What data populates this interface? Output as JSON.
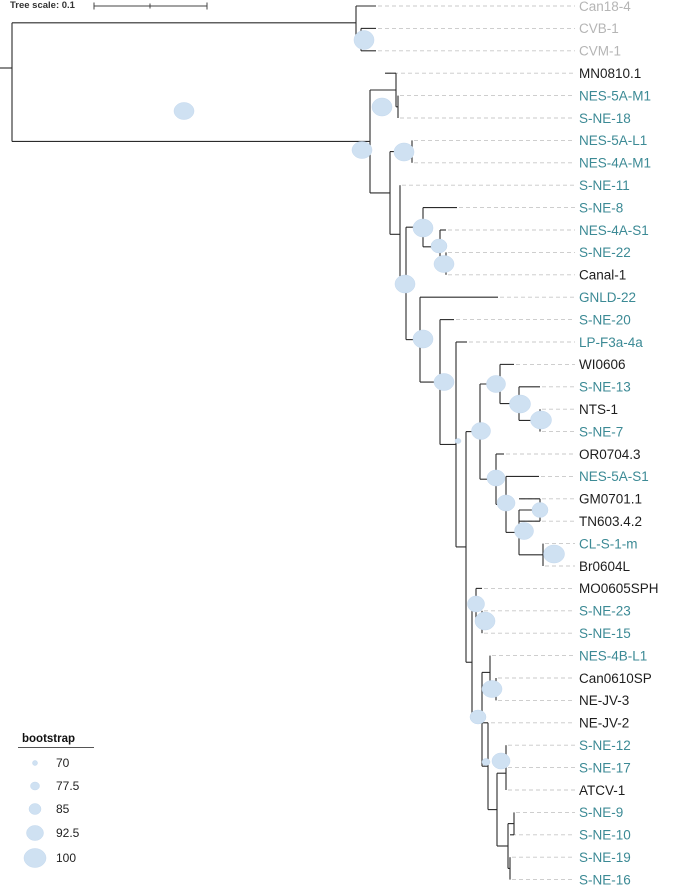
{
  "scale": {
    "label": "Tree scale: 0.1"
  },
  "legend": {
    "title": "bootstrap",
    "entries": [
      "70",
      "77.5",
      "85",
      "92.5",
      "100"
    ]
  },
  "colors": {
    "teal": "#3c8a95",
    "black": "#1e1e1e",
    "gray": "#b5b5b5",
    "bubble": "#cfe1f2",
    "branch": "#2b2b2b"
  },
  "taxa": [
    {
      "name": "Can18-4",
      "color": "gray"
    },
    {
      "name": "CVB-1",
      "color": "gray"
    },
    {
      "name": "CVM-1",
      "color": "gray"
    },
    {
      "name": "MN0810.1",
      "color": "black"
    },
    {
      "name": "NES-5A-M1",
      "color": "teal"
    },
    {
      "name": "S-NE-18",
      "color": "teal"
    },
    {
      "name": "NES-5A-L1",
      "color": "teal"
    },
    {
      "name": "NES-4A-M1",
      "color": "teal"
    },
    {
      "name": "S-NE-11",
      "color": "teal"
    },
    {
      "name": "S-NE-8",
      "color": "teal"
    },
    {
      "name": "NES-4A-S1",
      "color": "teal"
    },
    {
      "name": "S-NE-22",
      "color": "teal"
    },
    {
      "name": "Canal-1",
      "color": "black"
    },
    {
      "name": "GNLD-22",
      "color": "teal"
    },
    {
      "name": "S-NE-20",
      "color": "teal"
    },
    {
      "name": "LP-F3a-4a",
      "color": "teal"
    },
    {
      "name": "WI0606",
      "color": "black"
    },
    {
      "name": "S-NE-13",
      "color": "teal"
    },
    {
      "name": "NTS-1",
      "color": "black"
    },
    {
      "name": "S-NE-7",
      "color": "teal"
    },
    {
      "name": "OR0704.3",
      "color": "black"
    },
    {
      "name": "NES-5A-S1",
      "color": "teal"
    },
    {
      "name": "GM0701.1",
      "color": "black"
    },
    {
      "name": "TN603.4.2",
      "color": "black"
    },
    {
      "name": "CL-S-1-m",
      "color": "teal"
    },
    {
      "name": "Br0604L",
      "color": "black"
    },
    {
      "name": "MO0605SPH",
      "color": "black"
    },
    {
      "name": "S-NE-23",
      "color": "teal"
    },
    {
      "name": "S-NE-15",
      "color": "teal"
    },
    {
      "name": "NES-4B-L1",
      "color": "teal"
    },
    {
      "name": "Can0610SP",
      "color": "black"
    },
    {
      "name": "NE-JV-3",
      "color": "black"
    },
    {
      "name": "NE-JV-2",
      "color": "black"
    },
    {
      "name": "S-NE-12",
      "color": "teal"
    },
    {
      "name": "S-NE-17",
      "color": "teal"
    },
    {
      "name": "ATCV-1",
      "color": "black"
    },
    {
      "name": "S-NE-9",
      "color": "teal"
    },
    {
      "name": "S-NE-10",
      "color": "teal"
    },
    {
      "name": "S-NE-19",
      "color": "teal"
    },
    {
      "name": "S-NE-16",
      "color": "teal"
    }
  ]
}
